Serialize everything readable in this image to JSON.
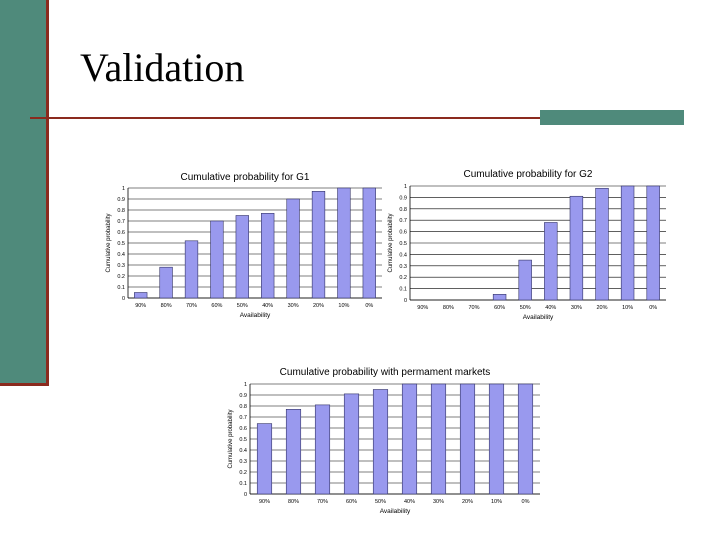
{
  "slide": {
    "title": "Validation",
    "colors": {
      "accent": "#4f8a7b",
      "rule": "#8b2a1e",
      "bar": "#9999ee"
    }
  },
  "chart_data": [
    {
      "type": "bar",
      "title": "Cumulative probability for G1",
      "xlabel": "Availability",
      "ylabel": "Cumulative probability",
      "categories": [
        "90%",
        "80%",
        "70%",
        "60%",
        "50%",
        "40%",
        "30%",
        "20%",
        "10%",
        "0%"
      ],
      "values": [
        0.05,
        0.28,
        0.52,
        0.7,
        0.75,
        0.77,
        0.9,
        0.97,
        1.0,
        1.0
      ],
      "yticks": [
        "0",
        "0.1",
        "0.2",
        "0.3",
        "0.4",
        "0.5",
        "0.6",
        "0.7",
        "0.8",
        "0.9",
        "1"
      ],
      "ylim": [
        0,
        1
      ],
      "grid": true
    },
    {
      "type": "bar",
      "title": "Cumulative probability for G2",
      "xlabel": "Availability",
      "ylabel": "Cumulative probability",
      "categories": [
        "90%",
        "80%",
        "70%",
        "60%",
        "50%",
        "40%",
        "30%",
        "20%",
        "10%",
        "0%"
      ],
      "values": [
        0,
        0,
        0,
        0.05,
        0.35,
        0.68,
        0.91,
        0.98,
        1.0,
        1.0
      ],
      "yticks": [
        "0",
        "0.1",
        "0.2",
        "0.3",
        "0.4",
        "0.5",
        "0.6",
        "0.7",
        "0.8",
        "0.9",
        "1"
      ],
      "ylim": [
        0,
        1
      ],
      "grid": true
    },
    {
      "type": "bar",
      "title": "Cumulative probability with permament markets",
      "xlabel": "Availability",
      "ylabel": "Cumulative probability",
      "categories": [
        "90%",
        "80%",
        "70%",
        "60%",
        "50%",
        "40%",
        "30%",
        "20%",
        "10%",
        "0%"
      ],
      "values": [
        0.64,
        0.77,
        0.81,
        0.91,
        0.95,
        1.0,
        1.0,
        1.0,
        1.0,
        1.0
      ],
      "yticks": [
        "0",
        "0.1",
        "0.2",
        "0.3",
        "0.4",
        "0.5",
        "0.6",
        "0.7",
        "0.8",
        "0.9",
        "1"
      ],
      "ylim": [
        0,
        1
      ],
      "grid": true
    }
  ]
}
